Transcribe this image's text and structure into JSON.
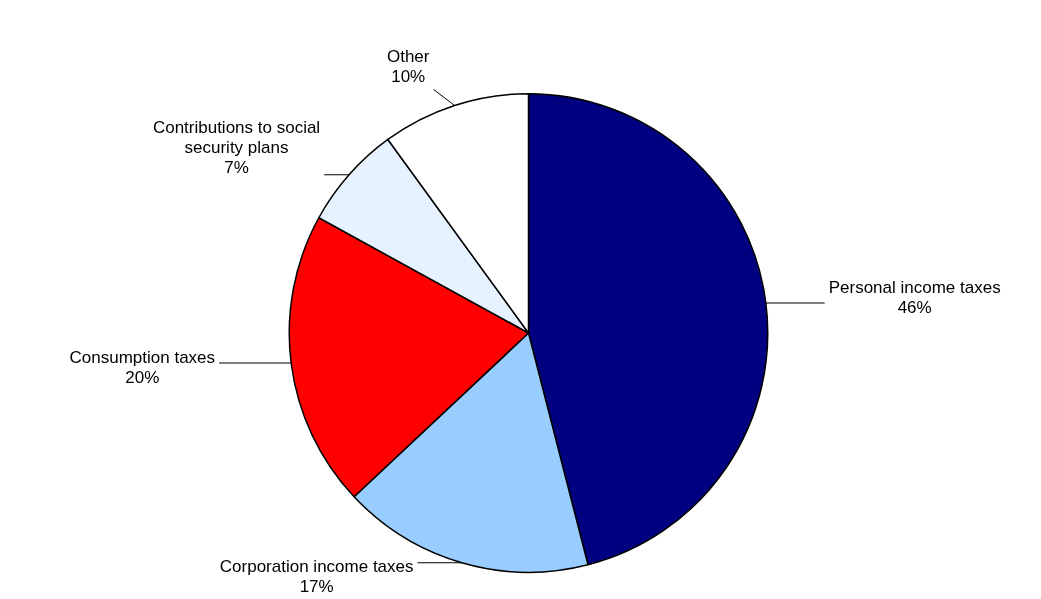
{
  "chart_data": {
    "type": "pie",
    "categories": [
      "Personal income taxes",
      "Corporation income taxes",
      "Consumption taxes",
      "Contributions to social security plans",
      "Other"
    ],
    "values": [
      46,
      17,
      20,
      7,
      10
    ],
    "value_labels": [
      "46%",
      "17%",
      "20%",
      "7%",
      "10%"
    ],
    "colors": [
      "#000080",
      "#99ccff",
      "#ff0000",
      "#e6f2ff",
      "#ffffff"
    ],
    "legend": false
  }
}
